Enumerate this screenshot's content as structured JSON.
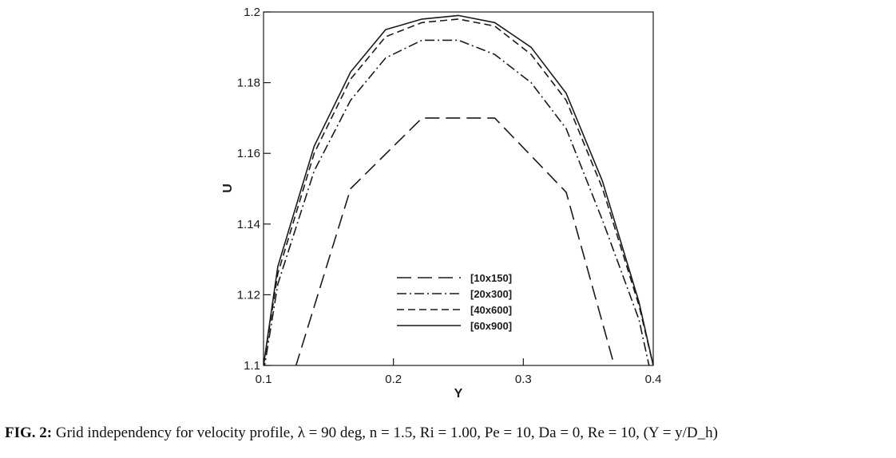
{
  "caption": {
    "label": "FIG. 2:",
    "text": "Grid independency for velocity profile, λ = 90 deg, n = 1.5, Ri = 1.00, Pe = 10, Da = 0, Re = 10, (Y = y/D_h)"
  },
  "chart_data": {
    "type": "line",
    "xlabel": "Y",
    "ylabel": "U",
    "xlim": [
      0.1,
      0.4
    ],
    "ylim": [
      1.1,
      1.2
    ],
    "xticks": [
      0.1,
      0.2,
      0.3,
      0.4
    ],
    "xtick_labels": [
      "0.1",
      "0.2",
      "0.3",
      "0.4"
    ],
    "yticks": [
      1.1,
      1.12,
      1.14,
      1.16,
      1.18,
      1.2
    ],
    "ytick_labels": [
      "1.1",
      "1.12",
      "1.14",
      "1.16",
      "1.18",
      "1.2"
    ],
    "grid": false,
    "legend_position": "lower-center",
    "series": [
      {
        "name": "[10x150]",
        "dash": "18,8",
        "x": [
          0.118,
          0.125,
          0.167,
          0.222,
          0.278,
          0.333,
          0.37,
          0.375
        ],
        "y": [
          1.082,
          1.1,
          1.15,
          1.17,
          1.17,
          1.149,
          1.1,
          1.093
        ]
      },
      {
        "name": "[20x300]",
        "dash": "12,4,2,4",
        "x": [
          0.1,
          0.111,
          0.139,
          0.167,
          0.194,
          0.222,
          0.25,
          0.278,
          0.306,
          0.333,
          0.361,
          0.389,
          0.398
        ],
        "y": [
          1.098,
          1.123,
          1.155,
          1.175,
          1.187,
          1.192,
          1.192,
          1.188,
          1.18,
          1.167,
          1.141,
          1.113,
          1.098
        ]
      },
      {
        "name": "[40x600]",
        "dash": "9,5",
        "x": [
          0.1,
          0.111,
          0.139,
          0.167,
          0.194,
          0.222,
          0.25,
          0.278,
          0.306,
          0.333,
          0.361,
          0.389,
          0.4
        ],
        "y": [
          1.1,
          1.126,
          1.16,
          1.181,
          1.193,
          1.197,
          1.198,
          1.196,
          1.188,
          1.175,
          1.15,
          1.117,
          1.1
        ]
      },
      {
        "name": "[60x900]",
        "dash": "",
        "x": [
          0.1,
          0.111,
          0.139,
          0.167,
          0.194,
          0.222,
          0.25,
          0.278,
          0.306,
          0.333,
          0.361,
          0.389,
          0.4
        ],
        "y": [
          1.1,
          1.128,
          1.162,
          1.183,
          1.195,
          1.198,
          1.199,
          1.197,
          1.19,
          1.177,
          1.152,
          1.118,
          1.1
        ]
      }
    ]
  }
}
